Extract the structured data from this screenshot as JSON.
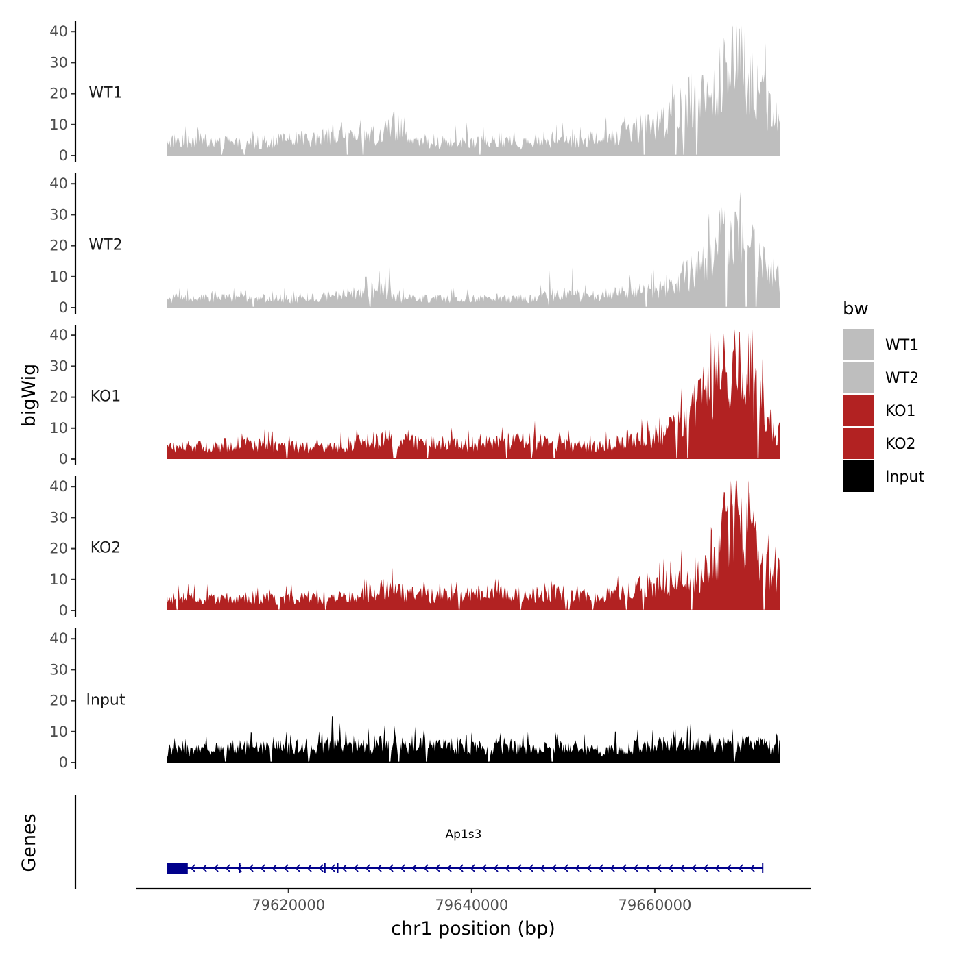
{
  "chart_data": {
    "type": "area",
    "title": "",
    "ylabel": "bigWig",
    "xlabel": "chr1 position (bp)",
    "ylim": [
      0,
      42
    ],
    "y_ticks": [
      0,
      10,
      20,
      30,
      40
    ],
    "xlim": [
      79603400,
      79677000
    ],
    "x_ticks": [
      79620000,
      79640000,
      79660000
    ],
    "x_tick_labels": [
      "79620000",
      "79640000",
      "79660000"
    ],
    "data_range": [
      79606700,
      79673700
    ],
    "legend": {
      "title": "bw",
      "position": "right",
      "entries": [
        {
          "label": "WT1",
          "color": "#bebebe"
        },
        {
          "label": "WT2",
          "color": "#bebebe"
        },
        {
          "label": "KO1",
          "color": "#b22222"
        },
        {
          "label": "KO2",
          "color": "#b22222"
        },
        {
          "label": "Input",
          "color": "#000000"
        }
      ]
    },
    "series": [
      {
        "name": "WT1",
        "color": "#bebebe",
        "profile": [
          [
            79606700,
            5
          ],
          [
            79610000,
            5
          ],
          [
            79615000,
            4
          ],
          [
            79620000,
            5
          ],
          [
            79624000,
            6
          ],
          [
            79628000,
            6
          ],
          [
            79631000,
            8
          ],
          [
            79635000,
            4
          ],
          [
            79640000,
            5
          ],
          [
            79645000,
            4
          ],
          [
            79650000,
            5
          ],
          [
            79654000,
            5
          ],
          [
            79657000,
            8
          ],
          [
            79660000,
            10
          ],
          [
            79662000,
            13
          ],
          [
            79664000,
            19
          ],
          [
            79666000,
            24
          ],
          [
            79667500,
            27
          ],
          [
            79668500,
            36
          ],
          [
            79669500,
            32
          ],
          [
            79670500,
            25
          ],
          [
            79672000,
            18
          ],
          [
            79673700,
            12
          ]
        ],
        "peaks": [
          [
            79669200,
            41
          ],
          [
            79669800,
            40
          ],
          [
            79667800,
            30
          ],
          [
            79665200,
            26
          ]
        ]
      },
      {
        "name": "WT2",
        "color": "#bebebe",
        "profile": [
          [
            79606700,
            3
          ],
          [
            79610000,
            3
          ],
          [
            79615000,
            3
          ],
          [
            79620000,
            3
          ],
          [
            79625000,
            4
          ],
          [
            79630000,
            6
          ],
          [
            79632000,
            3
          ],
          [
            79635000,
            3
          ],
          [
            79640000,
            3
          ],
          [
            79645000,
            3
          ],
          [
            79650000,
            4
          ],
          [
            79654000,
            4
          ],
          [
            79657000,
            5
          ],
          [
            79660000,
            6
          ],
          [
            79662000,
            8
          ],
          [
            79664000,
            11
          ],
          [
            79666000,
            17
          ],
          [
            79668000,
            23
          ],
          [
            79669500,
            26
          ],
          [
            79671000,
            18
          ],
          [
            79672500,
            12
          ],
          [
            79673700,
            10
          ]
        ],
        "peaks": [
          [
            79668800,
            31
          ],
          [
            79669600,
            29
          ],
          [
            79667500,
            27
          ],
          [
            79631000,
            14
          ],
          [
            79628500,
            10
          ],
          [
            79648500,
            12
          ],
          [
            79651000,
            13
          ]
        ]
      },
      {
        "name": "KO1",
        "color": "#b22222",
        "profile": [
          [
            79606700,
            4
          ],
          [
            79610000,
            4
          ],
          [
            79615000,
            5
          ],
          [
            79620000,
            4
          ],
          [
            79625000,
            4
          ],
          [
            79629000,
            6
          ],
          [
            79631000,
            7
          ],
          [
            79635000,
            5
          ],
          [
            79640000,
            5
          ],
          [
            79645000,
            6
          ],
          [
            79650000,
            5
          ],
          [
            79654000,
            4
          ],
          [
            79657000,
            6
          ],
          [
            79660000,
            7
          ],
          [
            79662000,
            10
          ],
          [
            79664000,
            16
          ],
          [
            79666000,
            24
          ],
          [
            79668000,
            30
          ],
          [
            79669300,
            35
          ],
          [
            79670500,
            27
          ],
          [
            79672000,
            14
          ],
          [
            79673700,
            8
          ]
        ],
        "peaks": [
          [
            79669200,
            41
          ],
          [
            79665000,
            26
          ],
          [
            79667800,
            28
          ],
          [
            79631000,
            10
          ]
        ]
      },
      {
        "name": "KO2",
        "color": "#b22222",
        "profile": [
          [
            79606700,
            4
          ],
          [
            79610000,
            4
          ],
          [
            79615000,
            4
          ],
          [
            79620000,
            4
          ],
          [
            79625000,
            4
          ],
          [
            79628000,
            5
          ],
          [
            79630000,
            7
          ],
          [
            79634000,
            5
          ],
          [
            79638000,
            5
          ],
          [
            79642000,
            6
          ],
          [
            79646000,
            5
          ],
          [
            79650000,
            6
          ],
          [
            79654000,
            4
          ],
          [
            79658000,
            7
          ],
          [
            79661000,
            8
          ],
          [
            79664000,
            10
          ],
          [
            79666500,
            14
          ],
          [
            79667500,
            26
          ],
          [
            79669000,
            29
          ],
          [
            79670500,
            27
          ],
          [
            79671500,
            15
          ],
          [
            79673700,
            10
          ]
        ],
        "peaks": [
          [
            79670000,
            35
          ],
          [
            79667800,
            32
          ],
          [
            79669200,
            31
          ],
          [
            79630800,
            10
          ],
          [
            79637800,
            9
          ]
        ]
      },
      {
        "name": "Input",
        "color": "#000000",
        "profile": [
          [
            79606700,
            4
          ],
          [
            79610000,
            4
          ],
          [
            79615000,
            5
          ],
          [
            79620000,
            5
          ],
          [
            79625000,
            6
          ],
          [
            79630000,
            6
          ],
          [
            79635000,
            6
          ],
          [
            79640000,
            5
          ],
          [
            79645000,
            5
          ],
          [
            79650000,
            5
          ],
          [
            79654000,
            4
          ],
          [
            79658000,
            5
          ],
          [
            79662000,
            6
          ],
          [
            79666000,
            6
          ],
          [
            79670000,
            6
          ],
          [
            79673700,
            5
          ]
        ],
        "peaks": [
          [
            79624800,
            15
          ],
          [
            79634800,
            11
          ],
          [
            79668500,
            11
          ],
          [
            79655700,
            10
          ]
        ]
      }
    ],
    "genes_panel": {
      "ylabel": "Genes",
      "gene_name": "Ap1s3",
      "gene_color": "#00008b",
      "strand": "-",
      "start": 79606700,
      "end": 79671800,
      "exons": [
        [
          79606700,
          79609000
        ],
        [
          79614600,
          79614700
        ],
        [
          79623900,
          79624000
        ],
        [
          79625300,
          79625400
        ],
        [
          79671700,
          79671800
        ]
      ]
    }
  }
}
